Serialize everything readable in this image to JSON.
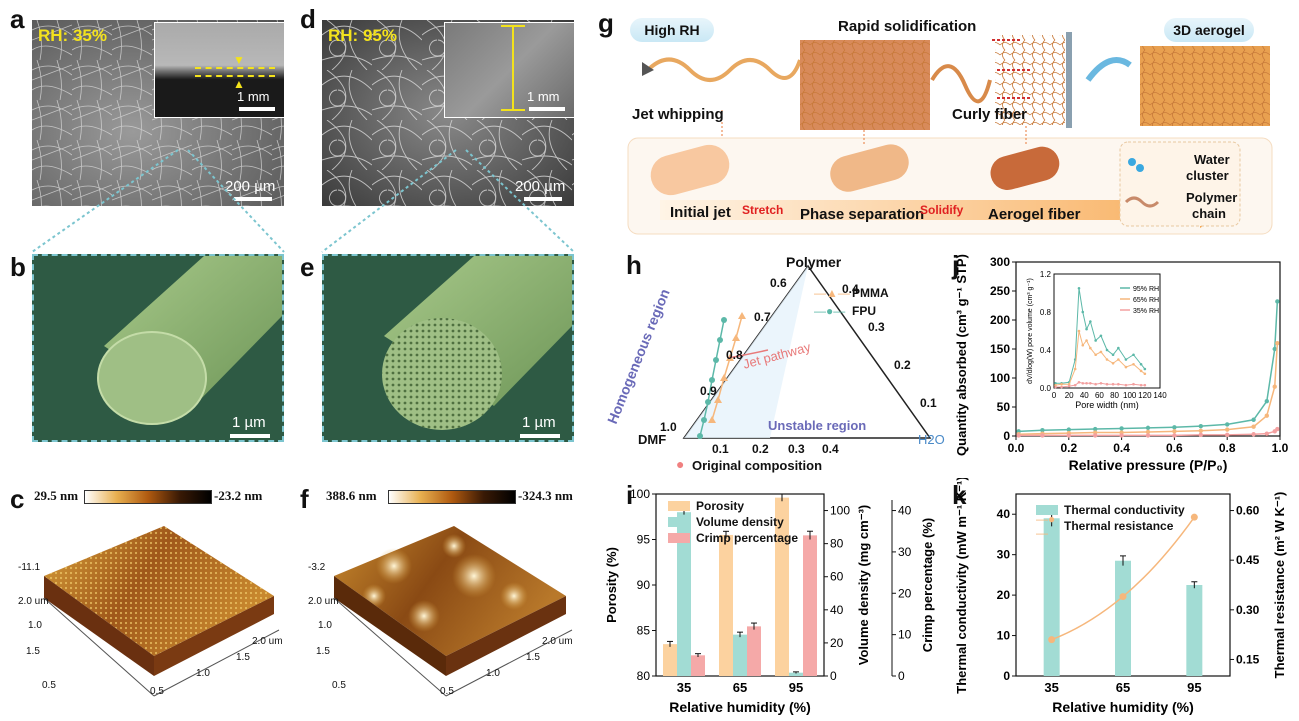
{
  "labels": {
    "a": "a",
    "b": "b",
    "c": "c",
    "d": "d",
    "e": "e",
    "f": "f",
    "g": "g",
    "h": "h",
    "i": "i",
    "j": "j",
    "k": "k"
  },
  "panel_a": {
    "rh": "RH: 35%",
    "scale_main": "200 µm",
    "scale_inset": "1 mm"
  },
  "panel_b": {
    "scale": "1 µm"
  },
  "panel_c": {
    "cmax": "29.5 nm",
    "cmin": "-23.2 nm",
    "zlabel": "-11.1",
    "xticks": [
      "0.5",
      "1.0",
      "1.5",
      "2.0 um"
    ],
    "yticks": [
      "0.5",
      "1.0",
      "1.5",
      "2.0 um"
    ]
  },
  "panel_d": {
    "rh": "RH: 95%",
    "scale_main": "200 µm",
    "scale_inset": "1 mm"
  },
  "panel_e": {
    "scale": "1 µm"
  },
  "panel_f": {
    "cmax": "388.6 nm",
    "cmin": "-324.3 nm",
    "zlabel": "-3.2",
    "xticks": [
      "0.5",
      "1.0",
      "1.5",
      "2.0 um"
    ],
    "yticks": [
      "0.5",
      "1.0",
      "1.5",
      "2.0 um"
    ]
  },
  "panel_g": {
    "high_rh": "High RH",
    "rapid": "Rapid solidification",
    "aerogel3d": "3D aerogel",
    "jet_whipping": "Jet whipping",
    "curly_fiber": "Curly fiber",
    "initial_jet": "Initial jet",
    "stretch": "Stretch",
    "phase_sep": "Phase separation",
    "solidify": "Solidify",
    "aerogel_fiber": "Aerogel fiber",
    "water_cluster": [
      "Water",
      "cluster"
    ],
    "polymer_chain": [
      "Polymer",
      "chain"
    ]
  },
  "chart_data": [
    {
      "panel": "h",
      "type": "ternary",
      "apex_top": "Polymer",
      "apex_left": "DMF",
      "apex_right": "H2O",
      "polymer_axis_ticks": [
        "0.6",
        "0.7",
        "0.8",
        "0.9",
        "1.0"
      ],
      "h2o_axis_ticks": [
        "0.1",
        "0.2",
        "0.3",
        "0.4"
      ],
      "right_axis_ticks": [
        "0.4",
        "0.3",
        "0.2",
        "0.1"
      ],
      "region_homogeneous": "Homogeneous region",
      "region_unstable": "Unstable region",
      "jet_pathway": "Jet pathway",
      "series": [
        {
          "name": "PMMA",
          "color": "#f6b77c"
        },
        {
          "name": "FPU",
          "color": "#5cb8a8"
        }
      ],
      "legend_original": "Original composition"
    },
    {
      "panel": "i",
      "type": "bar",
      "categories": [
        "35",
        "65",
        "95"
      ],
      "xlabel": "Relative humidity (%)",
      "series": [
        {
          "name": "Porosity",
          "axis": "Porosity (%)",
          "values": [
            83.5,
            95.5,
            99.6
          ],
          "err": [
            0.3,
            0.4,
            0.4
          ],
          "color": "#fcd29f"
        },
        {
          "name": "Volume density",
          "axis": "Volume density (mg cm⁻³)",
          "values": [
            99,
            25,
            2
          ],
          "err": [
            1.5,
            1.5,
            0.5
          ],
          "color": "#a2dcd4"
        },
        {
          "name": "Crimp percentage",
          "axis": "Crimp percentage (%)",
          "values": [
            5,
            12,
            34
          ],
          "err": [
            0.4,
            0.8,
            1.0
          ],
          "color": "#f5a9a8"
        }
      ],
      "axes": [
        {
          "label": "Porosity (%)",
          "ylim": [
            80,
            100
          ],
          "ticks": [
            "80",
            "85",
            "90",
            "95",
            "100"
          ]
        },
        {
          "label": "Volume density (mg cm⁻³)",
          "ylim": [
            0,
            110
          ],
          "ticks": [
            "0",
            "20",
            "40",
            "60",
            "80",
            "100"
          ]
        },
        {
          "label": "Crimp percentage (%)",
          "ylim": [
            0,
            44
          ],
          "ticks": [
            "0",
            "10",
            "20",
            "30",
            "40"
          ]
        }
      ]
    },
    {
      "panel": "j",
      "type": "line",
      "xlabel": "Relative pressure (P/P₀)",
      "ylabel": "Quantity absorbed (cm³ g⁻¹ STP)",
      "xlim": [
        0,
        1
      ],
      "ylim": [
        0,
        300
      ],
      "xticks": [
        "0.0",
        "0.2",
        "0.4",
        "0.6",
        "0.8",
        "1.0"
      ],
      "yticks": [
        "0",
        "50",
        "100",
        "150",
        "200",
        "250",
        "300"
      ],
      "series": [
        {
          "name": "95% RH",
          "color": "#5cb8a8",
          "x": [
            0.01,
            0.1,
            0.2,
            0.3,
            0.4,
            0.5,
            0.6,
            0.7,
            0.8,
            0.9,
            0.95,
            0.98,
            0.99
          ],
          "y": [
            8,
            10,
            11,
            12,
            13,
            14,
            15,
            17,
            20,
            28,
            60,
            150,
            232
          ]
        },
        {
          "name": "65% RH",
          "color": "#f6b77c",
          "x": [
            0.01,
            0.1,
            0.2,
            0.3,
            0.4,
            0.5,
            0.6,
            0.7,
            0.8,
            0.9,
            0.95,
            0.98,
            0.99
          ],
          "y": [
            3,
            4,
            5,
            6,
            6,
            7,
            8,
            9,
            11,
            16,
            35,
            85,
            160
          ]
        },
        {
          "name": "35% RH",
          "color": "#f3a0a0",
          "x": [
            0.01,
            0.1,
            0.2,
            0.3,
            0.4,
            0.5,
            0.6,
            0.7,
            0.8,
            0.9,
            0.95,
            0.98,
            0.99
          ],
          "y": [
            1,
            1,
            1,
            1,
            1,
            1,
            1,
            2,
            2,
            3,
            4,
            8,
            12
          ]
        }
      ],
      "inset": {
        "xlabel": "Pore width (nm)",
        "ylabel": "dV/dlog(W) pore volume (cm³ g⁻¹)",
        "xticks": [
          "0",
          "20",
          "40",
          "60",
          "80",
          "100",
          "120",
          "140"
        ],
        "yticks": [
          "0.0",
          "0.4",
          "0.8",
          "1.2"
        ],
        "series": [
          {
            "name": "95% RH",
            "color": "#5cb8a8",
            "x": [
              2,
              10,
              20,
              28,
              33,
              38,
              43,
              48,
              55,
              62,
              70,
              78,
              85,
              95,
              105,
              115,
              120
            ],
            "y": [
              0.05,
              0.05,
              0.06,
              0.3,
              1.05,
              0.8,
              0.62,
              0.7,
              0.5,
              0.55,
              0.4,
              0.35,
              0.42,
              0.3,
              0.35,
              0.25,
              0.2
            ]
          },
          {
            "name": "65% RH",
            "color": "#f6b77c",
            "x": [
              2,
              10,
              20,
              28,
              33,
              38,
              43,
              48,
              55,
              62,
              70,
              78,
              85,
              95,
              105,
              115,
              120
            ],
            "y": [
              0.03,
              0.04,
              0.04,
              0.2,
              0.6,
              0.45,
              0.5,
              0.42,
              0.35,
              0.38,
              0.3,
              0.26,
              0.3,
              0.22,
              0.25,
              0.18,
              0.15
            ]
          },
          {
            "name": "35% RH",
            "color": "#f3a0a0",
            "x": [
              2,
              10,
              20,
              28,
              33,
              38,
              43,
              48,
              55,
              62,
              70,
              78,
              85,
              95,
              105,
              115,
              120
            ],
            "y": [
              0.01,
              0.01,
              0.02,
              0.03,
              0.06,
              0.05,
              0.05,
              0.05,
              0.04,
              0.05,
              0.04,
              0.04,
              0.04,
              0.03,
              0.04,
              0.03,
              0.03
            ]
          }
        ]
      }
    },
    {
      "panel": "k",
      "type": "bar+line",
      "categories": [
        "35",
        "65",
        "95"
      ],
      "xlabel": "Relative humidity (%)",
      "series": [
        {
          "name": "Thermal conductivity",
          "axis": "Thermal conductivity (mW m⁻¹ K⁻¹)",
          "values": [
            39,
            28.5,
            22.5
          ],
          "err": [
            2.0,
            1.2,
            0.8
          ],
          "color": "#a2dcd4"
        },
        {
          "name": "Thermal resistance",
          "axis": "Thermal resistance (m² W K⁻¹)",
          "values": [
            0.21,
            0.34,
            0.58
          ],
          "color": "#f6b77c"
        }
      ],
      "axes": [
        {
          "label": "Thermal conductivity (mW m⁻¹ K⁻¹)",
          "ylim": [
            0,
            45
          ],
          "ticks": [
            "0",
            "10",
            "20",
            "30",
            "40"
          ]
        },
        {
          "label": "Thermal resistance (m² W K⁻¹)",
          "ylim": [
            0.1,
            0.65
          ],
          "ticks": [
            "0.15",
            "0.30",
            "0.45",
            "0.60"
          ]
        }
      ]
    }
  ]
}
